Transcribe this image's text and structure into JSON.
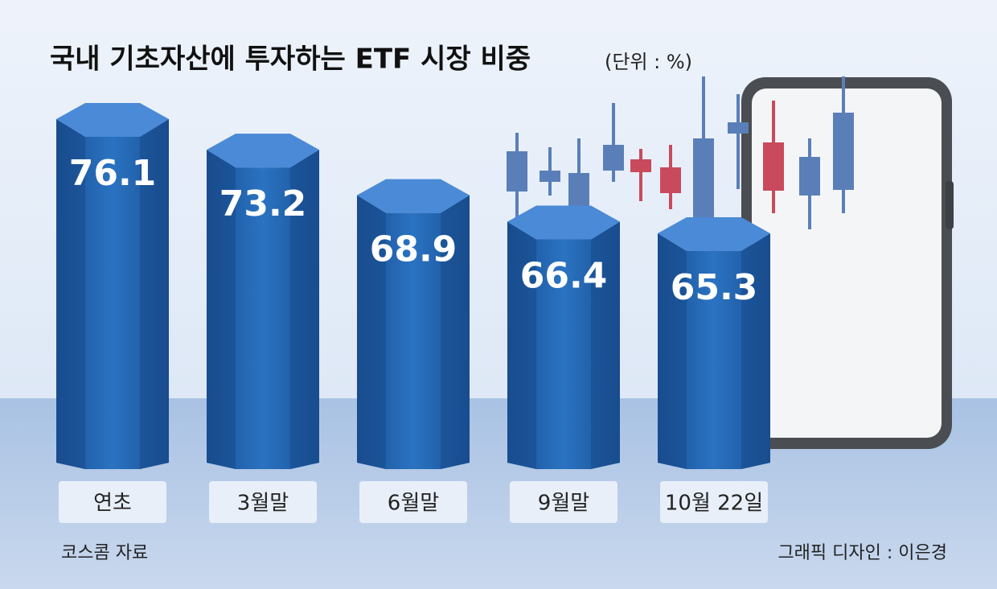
{
  "chart_data": {
    "type": "bar",
    "title": "국내 기초자산에 투자하는 ETF 시장 비중",
    "subtitle": "(단위 : %)",
    "categories": [
      "연초",
      "3월말",
      "6월말",
      "9월말",
      "10월 22일"
    ],
    "values": [
      76.1,
      73.2,
      68.9,
      66.4,
      65.3
    ],
    "color": "#1f62ad",
    "source": "코스콤 자료",
    "credit": "그래픽 디자인 : 이은경"
  }
}
